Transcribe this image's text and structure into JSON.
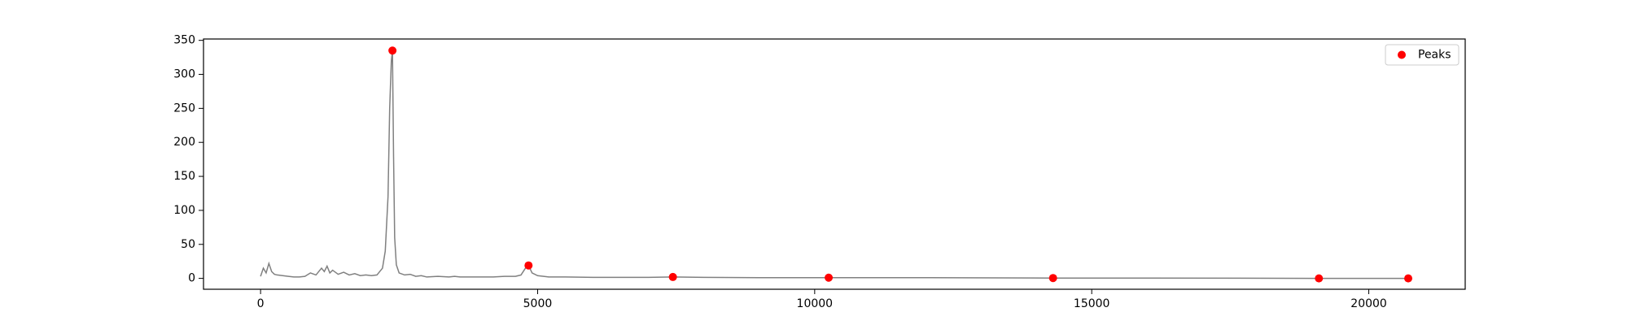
{
  "chart_data": {
    "type": "line",
    "xlim": [
      -1030,
      21740
    ],
    "ylim": [
      -16,
      352
    ],
    "xticks": [
      0,
      5000,
      10000,
      15000,
      20000
    ],
    "yticks": [
      0,
      50,
      100,
      150,
      200,
      250,
      300,
      350
    ],
    "grid": false,
    "legend": "upper right",
    "series": [
      {
        "color": "#808080",
        "x": [
          0,
          50,
          100,
          150,
          200,
          250,
          300,
          400,
          500,
          600,
          700,
          800,
          900,
          1000,
          1100,
          1150,
          1200,
          1250,
          1300,
          1400,
          1500,
          1600,
          1700,
          1800,
          1900,
          2000,
          2100,
          2200,
          2250,
          2300,
          2330,
          2360,
          2380,
          2400,
          2420,
          2450,
          2500,
          2600,
          2700,
          2800,
          2900,
          3000,
          3200,
          3400,
          3500,
          3600,
          3800,
          4000,
          4200,
          4400,
          4600,
          4700,
          4780,
          4836,
          4900,
          5000,
          5200,
          5500,
          6000,
          7000,
          7441,
          8000,
          9000,
          10253,
          12000,
          14302,
          16000,
          19100,
          20712
        ],
        "values": [
          3,
          15,
          8,
          22,
          10,
          6,
          5,
          4,
          3,
          2,
          2,
          3,
          8,
          5,
          15,
          10,
          18,
          8,
          12,
          6,
          9,
          5,
          7,
          4,
          5,
          4,
          5,
          15,
          40,
          120,
          250,
          320,
          335,
          180,
          60,
          20,
          8,
          5,
          6,
          3,
          4,
          2,
          3,
          2,
          3,
          2,
          2,
          2,
          2,
          3,
          3,
          5,
          15,
          19,
          8,
          4,
          2,
          2,
          1.5,
          1.5,
          2,
          1.5,
          1,
          1,
          1,
          0.5,
          0.5,
          0,
          0
        ]
      }
    ],
    "peaks": {
      "name": "Peaks",
      "color": "#ff0000",
      "x": [
        2380,
        4836,
        7441,
        10253,
        14302,
        19100,
        20712
      ],
      "values": [
        335,
        19,
        2,
        1,
        0.5,
        0,
        0
      ]
    }
  }
}
